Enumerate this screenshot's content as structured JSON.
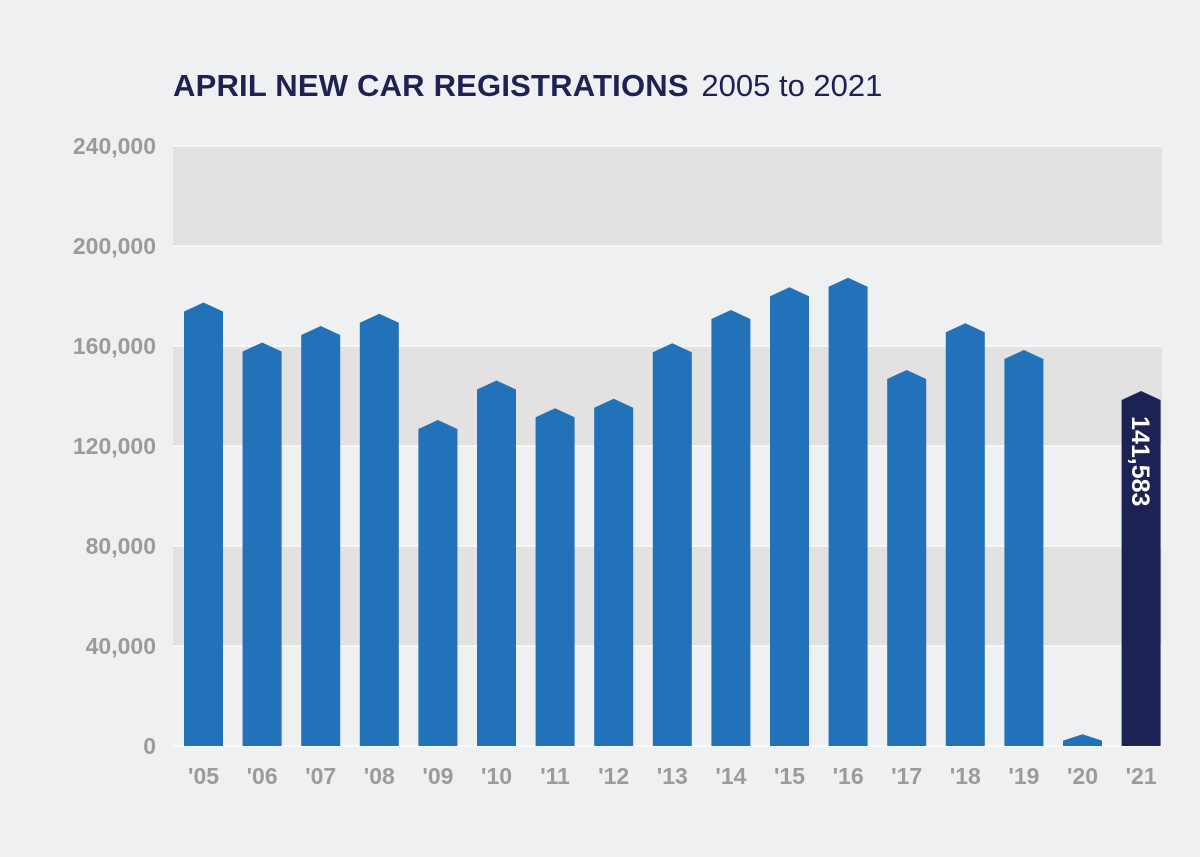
{
  "title": {
    "main": "APRIL NEW CAR REGISTRATIONS",
    "sub": "2005 to 2021"
  },
  "colors": {
    "bar": "#2172b9",
    "bar_highlight": "#1c2354",
    "band": "#e3e1e2",
    "background": "#eff0f2",
    "gridline": "#ffffff",
    "tick_text": "#9b9b9b",
    "title_text": "#1d2252"
  },
  "chart_data": {
    "type": "bar",
    "title": "APRIL NEW CAR REGISTRATIONS 2005 to 2021",
    "xlabel": "",
    "ylabel": "",
    "categories": [
      "'05",
      "'06",
      "'07",
      "'08",
      "'09",
      "'10",
      "'11",
      "'12",
      "'13",
      "'14",
      "'15",
      "'16",
      "'17",
      "'18",
      "'19",
      "'20",
      "'21"
    ],
    "values": [
      177000,
      161000,
      167600,
      172500,
      130000,
      145800,
      134700,
      138500,
      160700,
      174000,
      183100,
      186900,
      150000,
      168700,
      158000,
      4321,
      141583
    ],
    "highlight_index": 16,
    "data_labels": [
      {
        "index": 16,
        "text": "141,583"
      }
    ],
    "ylim": [
      0,
      240000
    ],
    "yticks": [
      0,
      40000,
      80000,
      120000,
      160000,
      200000,
      240000
    ],
    "ytick_labels": [
      "0",
      "40,000",
      "80,000",
      "120,000",
      "160,000",
      "200,000",
      "240,000"
    ],
    "grid": true,
    "legend": "none"
  }
}
